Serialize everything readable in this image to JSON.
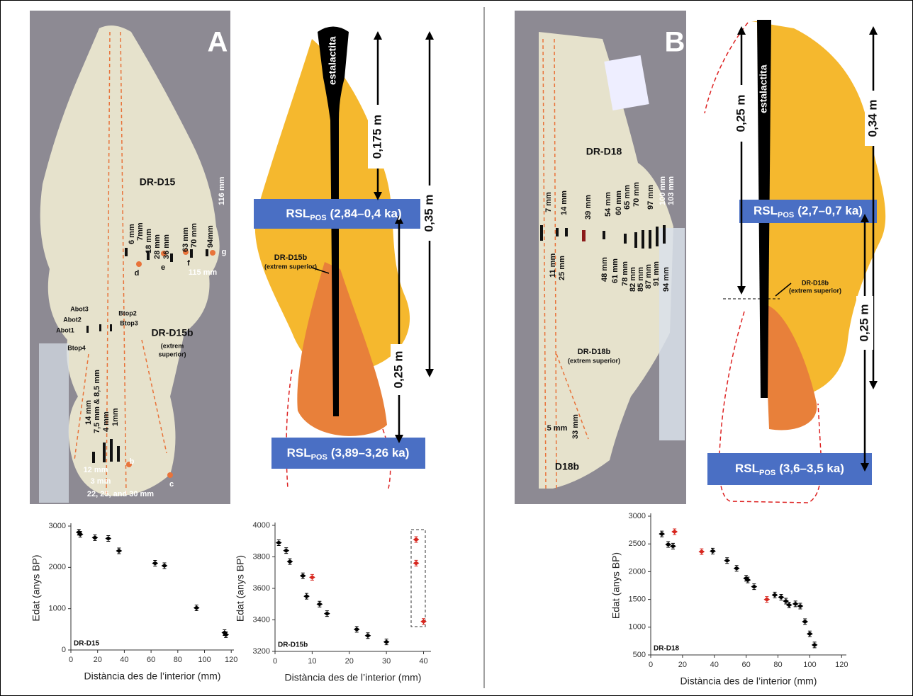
{
  "panel_a": {
    "photo_labels": [
      "A",
      "DR-D15",
      "116 mm",
      "6 mm",
      "7mm",
      "18 mm",
      "28 mm",
      "36 mm",
      "63 mm",
      "70 mm",
      "94mm",
      "115 mm",
      "d",
      "e",
      "f",
      "g",
      "Abot3",
      "Abot2",
      "Abot1",
      "Btop2",
      "Btop3",
      "Btop4",
      "DR-D15b",
      "(extrem",
      "superior)",
      "14 mm",
      "7,5 mm & 8,5 mm",
      "4 mm",
      "1mm",
      "12 mm",
      "3 mm",
      "b",
      "c",
      "22, 25, and 30 mm"
    ],
    "diagram": {
      "stalactite": "estalactita",
      "length_upper": "0,175 m",
      "length_total": "0,35 m",
      "length_lower": "0,25 m",
      "rsl_upper": {
        "rsl": "RSL",
        "sub": "POS",
        "range": "(2,84–0,4 ka)"
      },
      "rsl_lower": {
        "rsl": "RSL",
        "sub": "POS",
        "range": "(3,89–3,26 ka)"
      },
      "sample": "DR-D15b",
      "sample_note": "(extrem superior)"
    }
  },
  "panel_b": {
    "photo_labels": [
      "B",
      "DR-D18",
      "7 mm",
      "14 mm",
      "39 mm",
      "54 mm",
      "60 mm",
      "65 mm",
      "70 mm",
      "97 mm",
      "100 mm",
      "103 mm",
      "11 mm",
      "25 mm",
      "48 mm",
      "61 mm",
      "78 mm",
      "82 mm",
      "85 mm",
      "87 mm",
      "91 mm",
      "94 mm",
      "DR-D18b",
      "(extrem superior)",
      "5 mm",
      "33 mm",
      "D18b"
    ],
    "diagram": {
      "length_upper": "0,25 m",
      "stalactite": "estalactita",
      "length_total": "0,34 m",
      "rsl_upper": {
        "rsl": "RSL",
        "sub": "POS",
        "range": "(2,7–0,7 ka)"
      },
      "sample": "DR-D18b",
      "sample_note": "(extrem superior)",
      "length_lower": "0,25 m",
      "rsl_lower": {
        "rsl": "RSL",
        "sub": "POS",
        "range": "(3,6–3,5 ka)"
      }
    }
  },
  "chart_data": [
    {
      "type": "scatter",
      "label": "DR-D15",
      "xlabel": "Distància des de l’interior (mm)",
      "ylabel": "Edat  (anys BP)",
      "xlim": [
        0,
        122
      ],
      "ylim": [
        0,
        3000
      ],
      "xticks": [
        0,
        20,
        40,
        60,
        80,
        100,
        120
      ],
      "yticks": [
        0,
        1000,
        2000,
        3000
      ],
      "series": [
        {
          "color": "#000000",
          "x": [
            6,
            7,
            18,
            28,
            36,
            63,
            70,
            94,
            115,
            116
          ],
          "values": [
            2850,
            2800,
            2720,
            2700,
            2400,
            2100,
            2040,
            1020,
            420,
            370
          ]
        }
      ]
    },
    {
      "type": "scatter",
      "label": "DR-D15b",
      "xlabel": "Distància des de l’interior (mm)",
      "ylabel": "Edat  (anys BP)",
      "xlim": [
        0,
        42
      ],
      "ylim": [
        3200,
        4000
      ],
      "xticks": [
        0,
        10,
        20,
        30,
        40
      ],
      "yticks": [
        3200,
        3400,
        3600,
        3800,
        4000
      ],
      "series": [
        {
          "color": "#000000",
          "x": [
            1,
            3,
            4,
            7.5,
            8.5,
            12,
            14,
            22,
            25,
            30
          ],
          "values": [
            3890,
            3840,
            3770,
            3680,
            3550,
            3500,
            3440,
            3340,
            3300,
            3260
          ]
        },
        {
          "color": "#d7261e",
          "x": [
            10,
            38,
            38,
            40
          ],
          "values": [
            3670,
            3910,
            3760,
            3390
          ]
        }
      ]
    },
    {
      "type": "scatter",
      "label": "DR-D18",
      "xlabel": "Distància des de l’interior (mm)",
      "ylabel": "Edat  (anys BP)",
      "xlim": [
        0,
        123
      ],
      "ylim": [
        500,
        3000
      ],
      "xticks": [
        0,
        20,
        40,
        60,
        80,
        100,
        120
      ],
      "yticks": [
        500,
        1000,
        1500,
        2000,
        2500,
        3000
      ],
      "series": [
        {
          "color": "#000000",
          "x": [
            7,
            11,
            14,
            39,
            48,
            54,
            60,
            61,
            65,
            78,
            82,
            85,
            87,
            91,
            94,
            97,
            100,
            103
          ],
          "values": [
            2680,
            2490,
            2460,
            2370,
            2200,
            2060,
            1880,
            1850,
            1730,
            1580,
            1540,
            1470,
            1400,
            1420,
            1380,
            1100,
            880,
            680
          ]
        },
        {
          "color": "#d7261e",
          "x": [
            15,
            32,
            73
          ],
          "values": [
            2720,
            2360,
            1500
          ]
        }
      ]
    }
  ]
}
